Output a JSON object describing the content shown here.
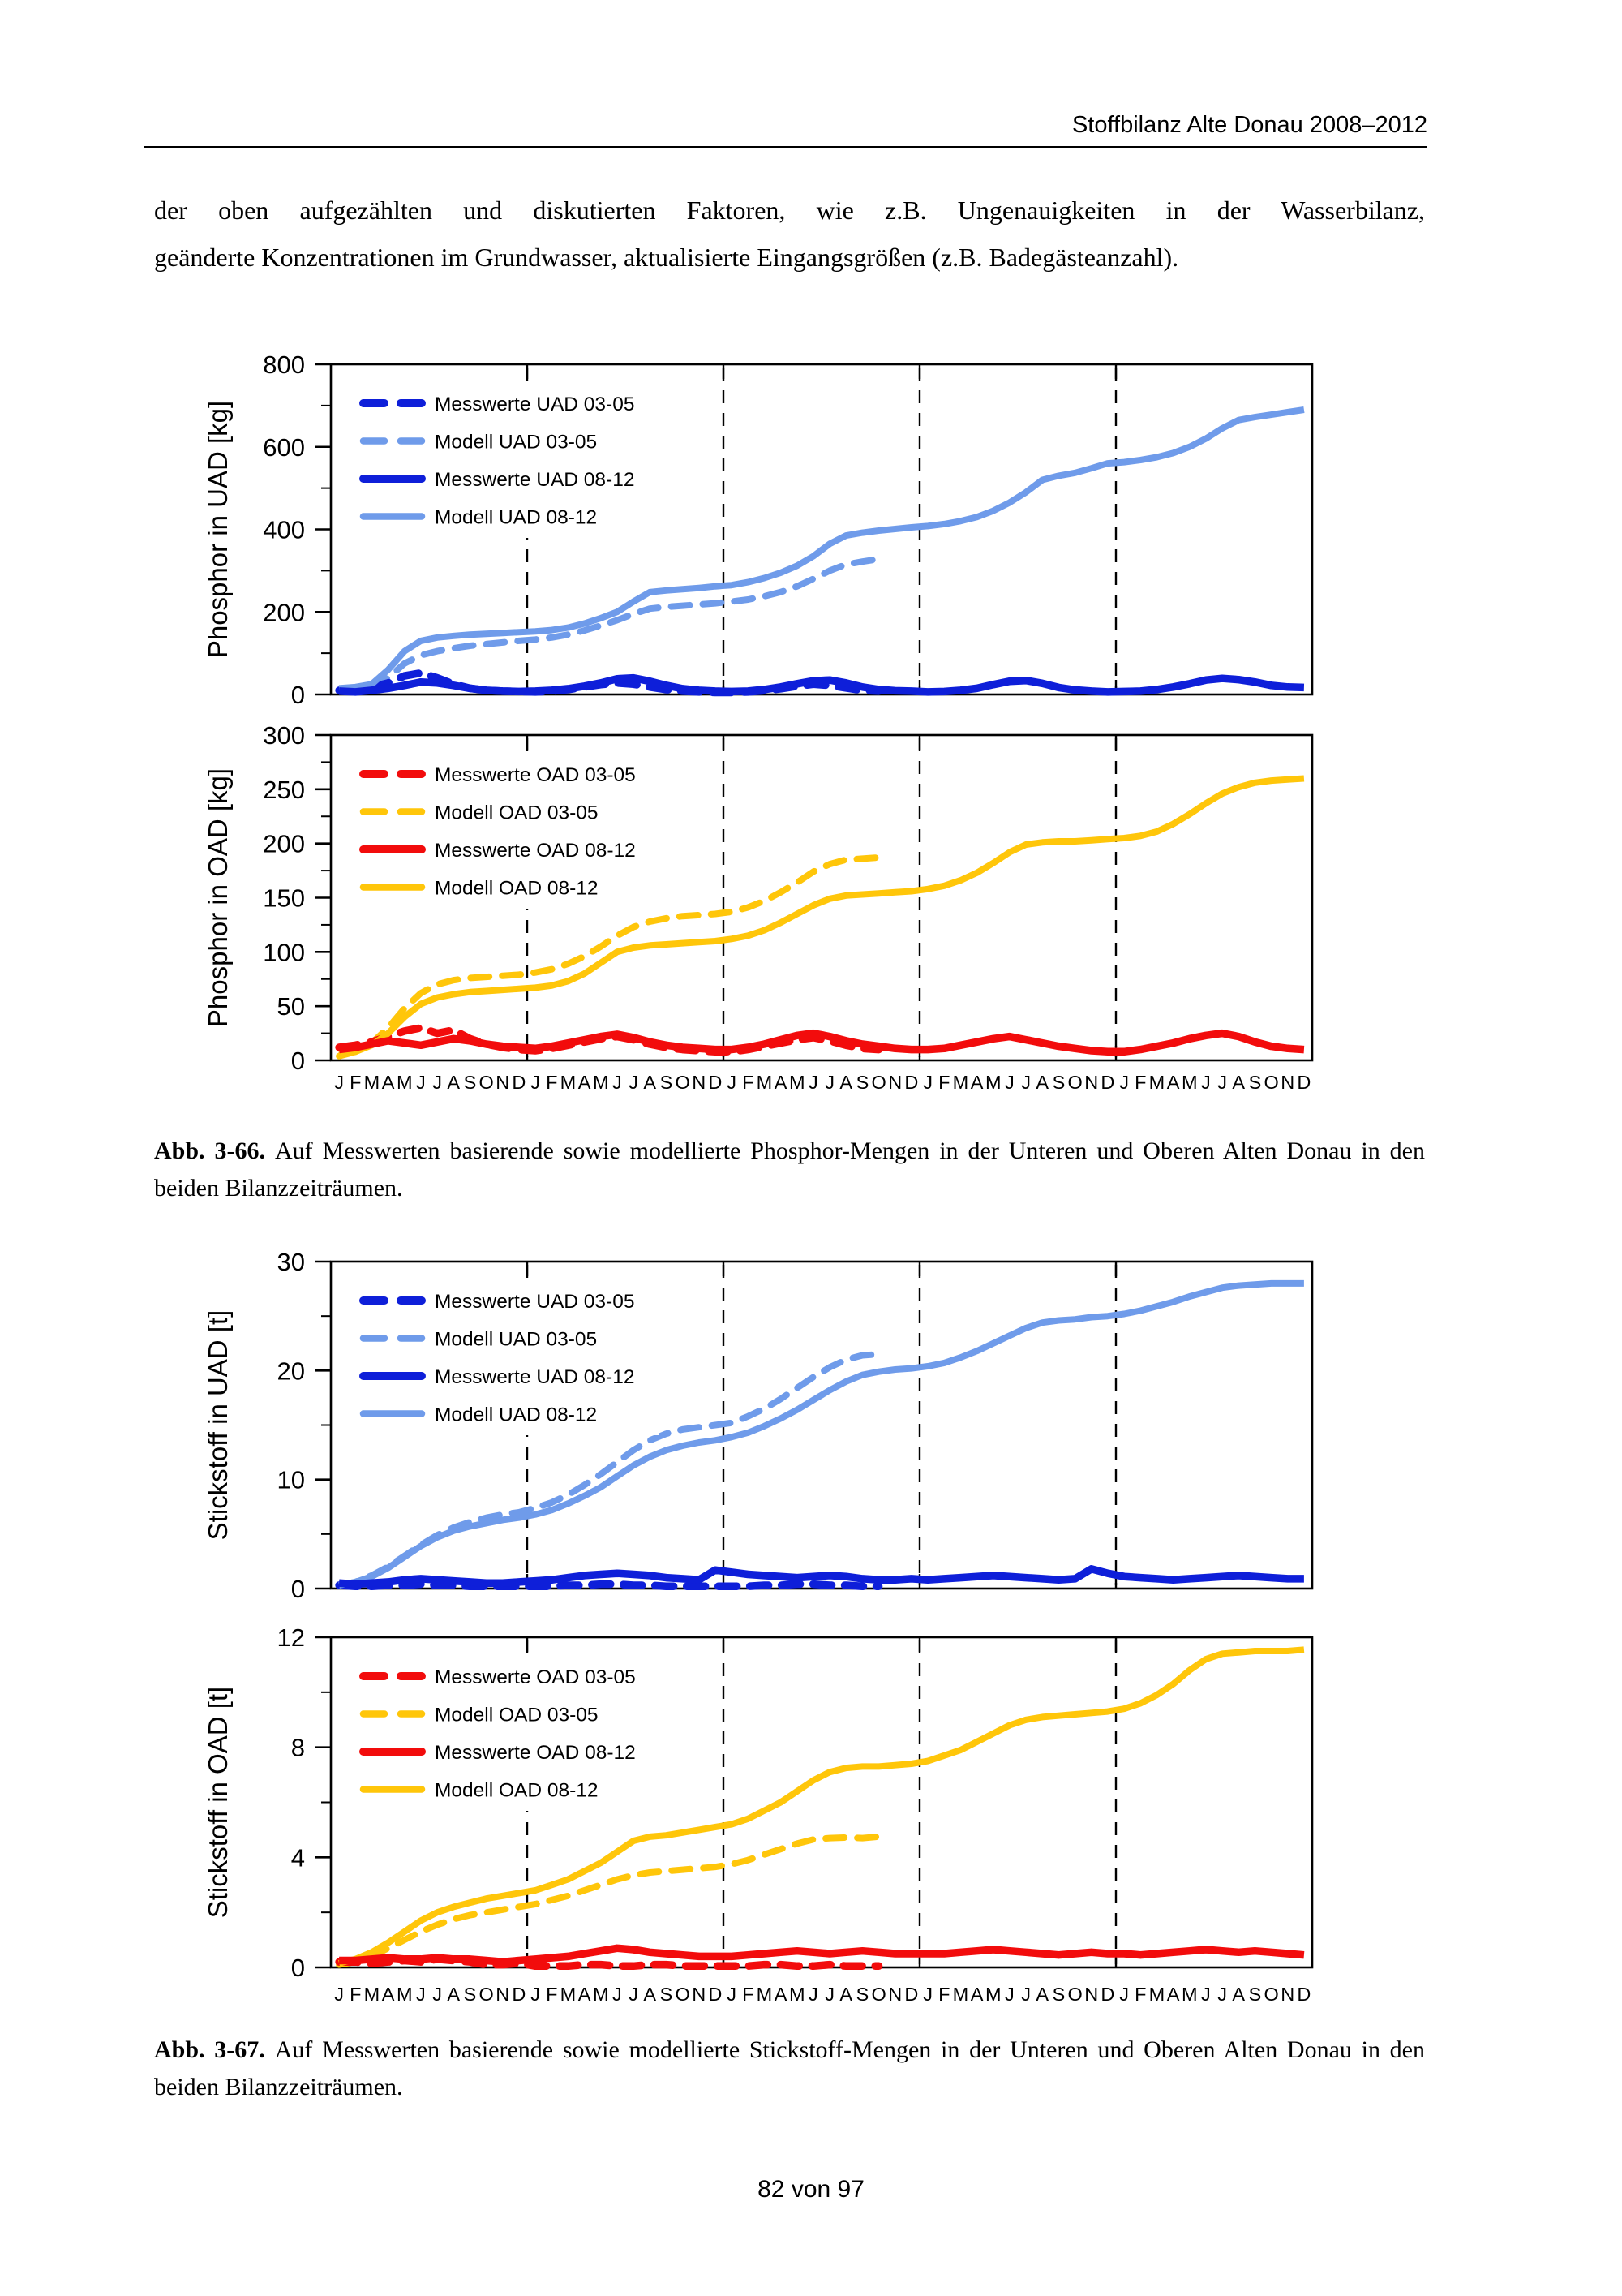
{
  "page": {
    "header": {
      "title": "Stoffbilanz Alte Donau 2008–2012"
    },
    "paragraph": {
      "line1": "der oben aufgezählten und diskutierten Faktoren, wie z.B. Ungenauigkeiten in der Wasserbilanz,",
      "line2": "geänderte Konzentrationen im Grundwasser, aktualisierte Eingangsgrößen (z.B. Badegästeanzahl)."
    },
    "captions": [
      {
        "label": "Abb. 3-66.",
        "text": "Auf Messwerten basierende sowie modellierte Phosphor-Mengen in der Unteren und Oberen Alten Donau in den beiden Bilanzzeiträumen."
      },
      {
        "label": "Abb. 3-67.",
        "text": "Auf Messwerten basierende sowie modellierte Stickstoff-Mengen in der Unteren und Oberen Alten Donau in den beiden Bilanzzeiträumen."
      }
    ],
    "footer": {
      "page_number": "82 von 97"
    }
  },
  "colors": {
    "dark_blue": "#0E1FD9",
    "light_blue": "#6F9BEA",
    "red": "#F20C0C",
    "gold": "#FFC60A",
    "axis": "#000000"
  },
  "chart_data": [
    {
      "type": "line",
      "ylabel": "Phosphor in UAD [kg]",
      "ylim": [
        0,
        800
      ],
      "ytick_step": 200,
      "ytick_minor_step": 100,
      "months_per_year": [
        "J",
        "F",
        "M",
        "A",
        "M",
        "J",
        "J",
        "A",
        "S",
        "O",
        "N",
        "D"
      ],
      "n_years": 5,
      "year_separators": [
        12,
        24,
        36,
        48
      ],
      "show_month_labels": false,
      "grid": "dashed-vertical-year-lines",
      "legend_position": "top-left",
      "series": [
        {
          "name": "Messwerte UAD 03-05",
          "color": "dark_blue",
          "dash": true,
          "values": [
            10,
            12,
            18,
            28,
            45,
            52,
            40,
            25,
            15,
            10,
            8,
            7,
            6,
            8,
            12,
            18,
            24,
            28,
            25,
            18,
            12,
            8,
            6,
            5,
            5,
            6,
            9,
            14,
            20,
            25,
            22,
            16,
            10,
            8
          ]
        },
        {
          "name": "Modell UAD 03-05",
          "color": "light_blue",
          "dash": true,
          "values": [
            8,
            12,
            18,
            40,
            75,
            95,
            105,
            112,
            118,
            122,
            126,
            130,
            133,
            138,
            145,
            155,
            167,
            180,
            195,
            208,
            212,
            215,
            218,
            221,
            225,
            230,
            238,
            248,
            262,
            280,
            300,
            315,
            322,
            328
          ]
        },
        {
          "name": "Messwerte UAD 08-12",
          "color": "dark_blue",
          "dash": false,
          "values": [
            8,
            6,
            10,
            15,
            22,
            30,
            28,
            22,
            15,
            10,
            8,
            7,
            8,
            10,
            14,
            20,
            28,
            38,
            40,
            32,
            22,
            14,
            10,
            8,
            7,
            8,
            12,
            18,
            26,
            33,
            35,
            28,
            18,
            12,
            9,
            8,
            6,
            7,
            10,
            15,
            24,
            32,
            34,
            27,
            17,
            11,
            8,
            6,
            7,
            8,
            12,
            18,
            26,
            35,
            39,
            36,
            30,
            22,
            18,
            17
          ]
        },
        {
          "name": "Modell UAD 08-12",
          "color": "light_blue",
          "dash": false,
          "values": [
            15,
            18,
            25,
            60,
            105,
            130,
            138,
            142,
            145,
            147,
            149,
            151,
            153,
            156,
            162,
            172,
            185,
            200,
            225,
            248,
            252,
            255,
            258,
            262,
            265,
            272,
            282,
            295,
            312,
            335,
            365,
            385,
            392,
            397,
            401,
            405,
            408,
            413,
            420,
            430,
            445,
            465,
            490,
            520,
            530,
            537,
            548,
            560,
            563,
            568,
            575,
            585,
            600,
            620,
            645,
            665,
            672,
            678,
            684,
            690
          ]
        }
      ]
    },
    {
      "type": "line",
      "ylabel": "Phosphor in OAD [kg]",
      "ylim": [
        0,
        300
      ],
      "ytick_step": 50,
      "ytick_minor_step": 25,
      "months_per_year": [
        "J",
        "F",
        "M",
        "A",
        "M",
        "J",
        "J",
        "A",
        "S",
        "O",
        "N",
        "D"
      ],
      "n_years": 5,
      "year_separators": [
        12,
        24,
        36,
        48
      ],
      "show_month_labels": true,
      "grid": "dashed-vertical-year-lines",
      "legend_position": "top-left",
      "series": [
        {
          "name": "Messwerte OAD 03-05",
          "color": "red",
          "dash": true,
          "values": [
            12,
            14,
            17,
            22,
            27,
            30,
            25,
            28,
            20,
            15,
            12,
            10,
            9,
            11,
            14,
            17,
            20,
            22,
            19,
            15,
            12,
            10,
            9,
            8,
            8,
            10,
            13,
            16,
            19,
            21,
            18,
            14,
            11,
            10
          ]
        },
        {
          "name": "Modell OAD 03-05",
          "color": "gold",
          "dash": true,
          "values": [
            4,
            8,
            16,
            30,
            48,
            62,
            70,
            74,
            76,
            77,
            78,
            79,
            81,
            84,
            89,
            96,
            105,
            115,
            123,
            128,
            131,
            133,
            134,
            135,
            137,
            141,
            147,
            155,
            164,
            174,
            181,
            185,
            186,
            187
          ]
        },
        {
          "name": "Messwerte OAD 08-12",
          "color": "red",
          "dash": false,
          "values": [
            10,
            12,
            15,
            18,
            16,
            14,
            17,
            20,
            18,
            15,
            13,
            12,
            11,
            13,
            16,
            19,
            22,
            24,
            21,
            17,
            14,
            12,
            11,
            10,
            10,
            12,
            15,
            19,
            23,
            25,
            22,
            18,
            15,
            13,
            11,
            10,
            10,
            11,
            14,
            17,
            20,
            22,
            19,
            16,
            13,
            11,
            9,
            8,
            8,
            10,
            13,
            16,
            20,
            23,
            25,
            22,
            17,
            13,
            11,
            10
          ]
        },
        {
          "name": "Modell OAD 08-12",
          "color": "gold",
          "dash": false,
          "values": [
            5,
            8,
            14,
            25,
            40,
            52,
            58,
            61,
            63,
            64,
            65,
            66,
            67,
            69,
            73,
            80,
            90,
            100,
            104,
            106,
            107,
            108,
            109,
            110,
            112,
            115,
            120,
            127,
            135,
            143,
            149,
            152,
            153,
            154,
            155,
            156,
            158,
            161,
            166,
            173,
            182,
            192,
            199,
            201,
            202,
            202,
            203,
            204,
            205,
            207,
            211,
            218,
            227,
            237,
            246,
            252,
            256,
            258,
            259,
            260
          ]
        }
      ]
    },
    {
      "type": "line",
      "ylabel": "Stickstoff in UAD [t]",
      "ylim": [
        0,
        30
      ],
      "ytick_step": 10,
      "ytick_minor_step": 5,
      "months_per_year": [
        "J",
        "F",
        "M",
        "A",
        "M",
        "J",
        "J",
        "A",
        "S",
        "O",
        "N",
        "D"
      ],
      "n_years": 5,
      "year_separators": [
        12,
        24,
        36,
        48
      ],
      "show_month_labels": false,
      "grid": "dashed-vertical-year-lines",
      "legend_position": "top-left",
      "series": [
        {
          "name": "Messwerte UAD 03-05",
          "color": "dark_blue",
          "dash": true,
          "values": [
            0.3,
            0.2,
            0.2,
            0.3,
            0.3,
            0.4,
            0.3,
            0.3,
            0.2,
            0.2,
            0.2,
            0.2,
            0.2,
            0.2,
            0.3,
            0.3,
            0.4,
            0.4,
            0.3,
            0.3,
            0.2,
            0.2,
            0.2,
            0.2,
            0.2,
            0.2,
            0.3,
            0.3,
            0.4,
            0.4,
            0.3,
            0.3,
            0.2,
            0.2
          ]
        },
        {
          "name": "Modell UAD 03-05",
          "color": "light_blue",
          "dash": true,
          "values": [
            0.3,
            0.6,
            1.2,
            2.0,
            3.0,
            4.0,
            4.9,
            5.6,
            6.1,
            6.5,
            6.8,
            7.0,
            7.4,
            7.9,
            8.6,
            9.5,
            10.5,
            11.6,
            12.7,
            13.6,
            14.2,
            14.6,
            14.8,
            15.0,
            15.2,
            15.8,
            16.5,
            17.4,
            18.4,
            19.4,
            20.3,
            21.0,
            21.4,
            21.5
          ]
        },
        {
          "name": "Messwerte UAD 08-12",
          "color": "dark_blue",
          "dash": false,
          "values": [
            0.5,
            0.4,
            0.5,
            0.6,
            0.8,
            0.9,
            0.8,
            0.7,
            0.6,
            0.5,
            0.5,
            0.6,
            0.7,
            0.8,
            1.0,
            1.2,
            1.3,
            1.4,
            1.3,
            1.2,
            1.0,
            0.9,
            0.8,
            1.7,
            1.5,
            1.3,
            1.2,
            1.1,
            1.0,
            1.1,
            1.2,
            1.1,
            0.9,
            0.8,
            0.8,
            0.9,
            0.8,
            0.9,
            1.0,
            1.1,
            1.2,
            1.1,
            1.0,
            0.9,
            0.8,
            0.9,
            1.8,
            1.4,
            1.1,
            1.0,
            0.9,
            0.8,
            0.9,
            1.0,
            1.1,
            1.2,
            1.1,
            1.0,
            0.9,
            0.9
          ]
        },
        {
          "name": "Modell UAD 08-12",
          "color": "light_blue",
          "dash": false,
          "values": [
            0.3,
            0.6,
            1.1,
            1.9,
            2.9,
            3.9,
            4.7,
            5.3,
            5.7,
            6.0,
            6.3,
            6.5,
            6.8,
            7.2,
            7.8,
            8.5,
            9.3,
            10.3,
            11.3,
            12.1,
            12.7,
            13.1,
            13.4,
            13.6,
            13.9,
            14.3,
            14.9,
            15.6,
            16.4,
            17.3,
            18.2,
            19.0,
            19.6,
            19.9,
            20.1,
            20.2,
            20.4,
            20.7,
            21.2,
            21.8,
            22.5,
            23.2,
            23.9,
            24.4,
            24.6,
            24.7,
            24.9,
            25.0,
            25.2,
            25.5,
            25.9,
            26.3,
            26.8,
            27.2,
            27.6,
            27.8,
            27.9,
            28.0,
            28.0,
            28.0
          ]
        }
      ]
    },
    {
      "type": "line",
      "ylabel": "Stickstoff in OAD [t]",
      "ylim": [
        0,
        12
      ],
      "ytick_step": 4,
      "ytick_minor_step": 2,
      "months_per_year": [
        "J",
        "F",
        "M",
        "A",
        "M",
        "J",
        "J",
        "A",
        "S",
        "O",
        "N",
        "D"
      ],
      "n_years": 5,
      "year_separators": [
        12,
        24,
        36,
        48
      ],
      "show_month_labels": true,
      "grid": "dashed-vertical-year-lines",
      "legend_position": "top-left",
      "series": [
        {
          "name": "Messwerte OAD 03-05",
          "color": "red",
          "dash": true,
          "values": [
            0.2,
            0.2,
            0.15,
            0.2,
            0.25,
            0.2,
            0.3,
            0.25,
            0.2,
            0.1,
            0.1,
            0.15,
            0.05,
            0.05,
            0.05,
            0.1,
            0.1,
            0.05,
            0.05,
            0.1,
            0.1,
            0.05,
            0.05,
            0.05,
            0.05,
            0.05,
            0.1,
            0.1,
            0.05,
            0.05,
            0.1,
            0.05,
            0.05,
            0.05
          ]
        },
        {
          "name": "Modell OAD 03-05",
          "color": "gold",
          "dash": true,
          "values": [
            0.1,
            0.2,
            0.4,
            0.7,
            1.0,
            1.3,
            1.55,
            1.75,
            1.9,
            2.0,
            2.1,
            2.2,
            2.3,
            2.45,
            2.6,
            2.8,
            3.0,
            3.2,
            3.35,
            3.45,
            3.5,
            3.55,
            3.6,
            3.65,
            3.75,
            3.9,
            4.1,
            4.3,
            4.5,
            4.65,
            4.7,
            4.72,
            4.7,
            4.75
          ]
        },
        {
          "name": "Messwerte OAD 08-12",
          "color": "red",
          "dash": false,
          "values": [
            0.25,
            0.25,
            0.3,
            0.35,
            0.3,
            0.3,
            0.35,
            0.3,
            0.3,
            0.25,
            0.2,
            0.25,
            0.3,
            0.35,
            0.4,
            0.5,
            0.6,
            0.7,
            0.65,
            0.55,
            0.5,
            0.45,
            0.4,
            0.4,
            0.4,
            0.45,
            0.5,
            0.55,
            0.6,
            0.55,
            0.5,
            0.55,
            0.6,
            0.55,
            0.5,
            0.5,
            0.5,
            0.5,
            0.55,
            0.6,
            0.65,
            0.6,
            0.55,
            0.5,
            0.45,
            0.5,
            0.55,
            0.5,
            0.5,
            0.45,
            0.5,
            0.55,
            0.6,
            0.65,
            0.6,
            0.55,
            0.6,
            0.55,
            0.5,
            0.45
          ]
        },
        {
          "name": "Modell OAD 08-12",
          "color": "gold",
          "dash": false,
          "values": [
            0.15,
            0.3,
            0.55,
            0.9,
            1.3,
            1.7,
            2.0,
            2.2,
            2.35,
            2.5,
            2.6,
            2.7,
            2.8,
            3.0,
            3.2,
            3.5,
            3.8,
            4.2,
            4.6,
            4.75,
            4.8,
            4.9,
            5.0,
            5.1,
            5.2,
            5.4,
            5.7,
            6.0,
            6.4,
            6.8,
            7.1,
            7.25,
            7.3,
            7.3,
            7.35,
            7.4,
            7.5,
            7.7,
            7.9,
            8.2,
            8.5,
            8.8,
            9.0,
            9.1,
            9.15,
            9.2,
            9.25,
            9.3,
            9.4,
            9.6,
            9.9,
            10.3,
            10.8,
            11.2,
            11.4,
            11.45,
            11.5,
            11.5,
            11.5,
            11.55
          ]
        }
      ]
    }
  ]
}
